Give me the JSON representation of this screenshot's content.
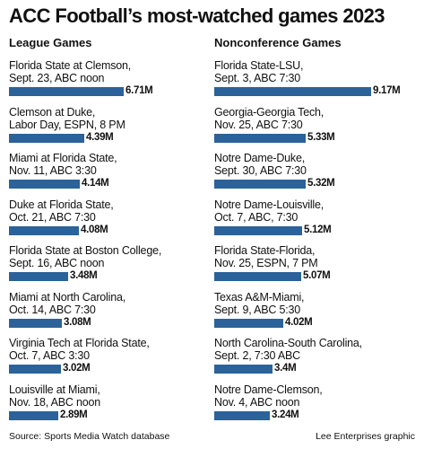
{
  "title": "ACC Football’s most-watched games 2023",
  "source": "Source: Sports Media Watch database",
  "credit": "Lee Enterprises graphic",
  "colors": {
    "bar": "#2b6299",
    "text": "#111111"
  },
  "chart_data": [
    {
      "type": "bar",
      "orientation": "horizontal",
      "title": "League Games",
      "unit": "M",
      "xlim": [
        0,
        9.17
      ],
      "categories": [
        [
          "Florida State at Clemson,",
          "Sept. 23, ABC noon"
        ],
        [
          "Clemson at Duke,",
          "Labor Day, ESPN, 8 PM"
        ],
        [
          "Miami at Florida State,",
          "Nov. 11, ABC 3:30"
        ],
        [
          "Duke at Florida State,",
          "Oct. 21, ABC 7:30"
        ],
        [
          "Florida State at Boston College,",
          "Sept. 16, ABC noon"
        ],
        [
          "Miami at North Carolina,",
          "Oct. 14, ABC 7:30"
        ],
        [
          "Virginia Tech at Florida State,",
          "Oct. 7, ABC 3:30"
        ],
        [
          "Louisville at Miami,",
          "Nov. 18, ABC noon"
        ]
      ],
      "values": [
        6.71,
        4.39,
        4.14,
        4.08,
        3.48,
        3.08,
        3.02,
        2.89
      ],
      "labels": [
        "6.71M",
        "4.39M",
        "4.14M",
        "4.08M",
        "3.48M",
        "3.08M",
        "3.02M",
        "2.89M"
      ]
    },
    {
      "type": "bar",
      "orientation": "horizontal",
      "title": "Nonconference Games",
      "unit": "M",
      "xlim": [
        0,
        9.17
      ],
      "categories": [
        [
          "Florida State-LSU,",
          "Sept. 3, ABC 7:30"
        ],
        [
          "Georgia-Georgia Tech,",
          "Nov. 25, ABC 7:30"
        ],
        [
          "Notre Dame-Duke,",
          "Sept. 30, ABC 7:30"
        ],
        [
          "Notre Dame-Louisville,",
          "Oct. 7, ABC, 7:30"
        ],
        [
          "Florida State-Florida,",
          "Nov. 25, ESPN, 7 PM"
        ],
        [
          "Texas A&M-Miami,",
          "Sept. 9, ABC 5:30"
        ],
        [
          "North Carolina-South Carolina,",
          "Sept. 2, 7:30 ABC"
        ],
        [
          "Notre Dame-Clemson,",
          "Nov. 4, ABC noon"
        ]
      ],
      "values": [
        9.17,
        5.33,
        5.32,
        5.12,
        5.07,
        4.02,
        3.4,
        3.24
      ],
      "labels": [
        "9.17M",
        "5.33M",
        "5.32M",
        "5.12M",
        "5.07M",
        "4.02M",
        "3.4M",
        "3.24M"
      ]
    }
  ]
}
